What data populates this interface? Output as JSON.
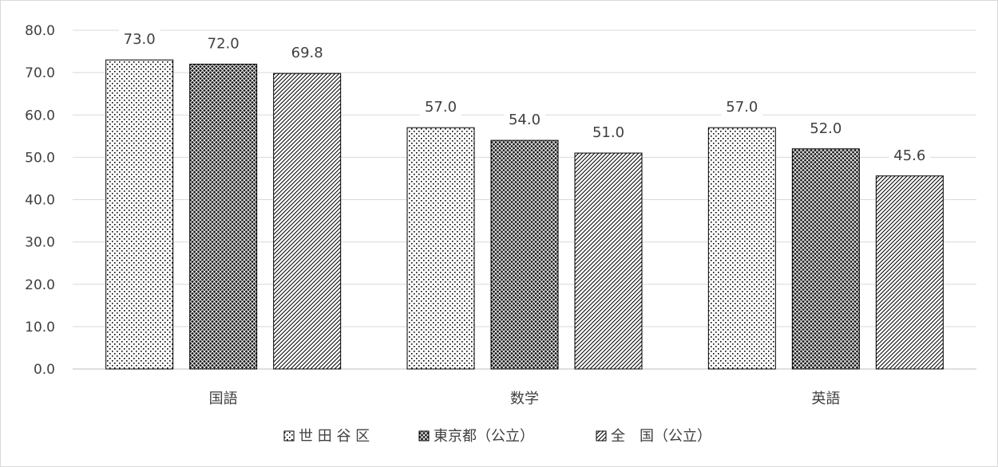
{
  "chart_data": {
    "type": "bar",
    "categories": [
      "国語",
      "数学",
      "英語"
    ],
    "series": [
      {
        "name": "世 田 谷 区",
        "values": [
          73.0,
          57.0,
          57.0
        ],
        "pattern": "dots"
      },
      {
        "name": "東京都（公立）",
        "values": [
          72.0,
          54.0,
          52.0
        ],
        "pattern": "dense-crosshatch"
      },
      {
        "name": "全　国（公立）",
        "values": [
          69.8,
          51.0,
          45.6
        ],
        "pattern": "diagonal"
      }
    ],
    "ylim": [
      0,
      80
    ],
    "yticks": [
      "0.0",
      "10.0",
      "20.0",
      "30.0",
      "40.0",
      "50.0",
      "60.0",
      "70.0",
      "80.0"
    ],
    "data_labels": [
      [
        "73.0",
        "57.0",
        "57.0"
      ],
      [
        "72.0",
        "54.0",
        "52.0"
      ],
      [
        "69.8",
        "51.0",
        "45.6"
      ]
    ],
    "grid": true,
    "legend_position": "bottom",
    "colors": {
      "text": "#404040",
      "grid": "#d9d9d9",
      "bar_stroke": "#000000"
    }
  }
}
